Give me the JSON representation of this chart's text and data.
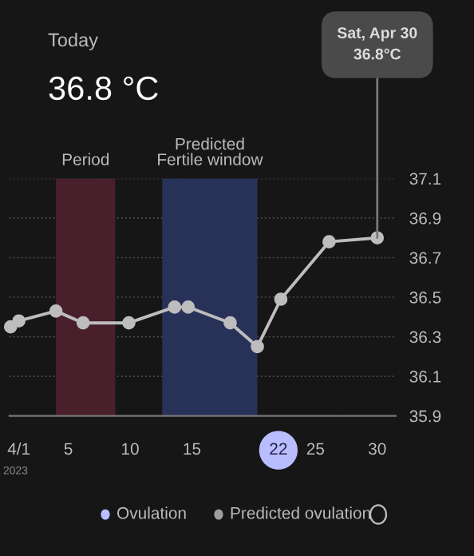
{
  "chart_data": {
    "type": "line",
    "title": "Today",
    "subtitle": "36.8 °C",
    "x": [
      0.33,
      1,
      4.0,
      6.2,
      9.9,
      13.6,
      14.7,
      18.1,
      20.3,
      22.2,
      26.1,
      30
    ],
    "series": [
      {
        "color": "#bdbdbd",
        "values": [
          36.35,
          36.38,
          36.43,
          36.37,
          36.37,
          36.45,
          36.45,
          36.37,
          36.25,
          36.49,
          36.78,
          36.8
        ]
      }
    ],
    "marker": "circle",
    "xlim": [
      0.24,
      31.5
    ],
    "xticks": [
      {
        "value": 1,
        "label": "4/1"
      },
      5,
      10,
      15,
      22,
      25,
      30
    ],
    "ylim": [
      35.9,
      37.1
    ],
    "yticks": [
      35.9,
      36.1,
      36.3,
      36.5,
      36.7,
      36.9,
      37.1
    ],
    "grid": "y",
    "bands": [
      {
        "axis": "x",
        "from": 4.0,
        "to": 8.8,
        "label": "Period",
        "color": "#4a1f2c"
      },
      {
        "axis": "x",
        "from": 12.6,
        "to": 20.3,
        "label": "Predicted\nFertile window",
        "color": "#283259"
      }
    ],
    "annotations": [
      {
        "text": "Sat, Apr 30\n36.8°C",
        "x": 30,
        "y": 36.8
      },
      "2023",
      "Ovulation",
      "Predicted ovulation"
    ]
  }
}
